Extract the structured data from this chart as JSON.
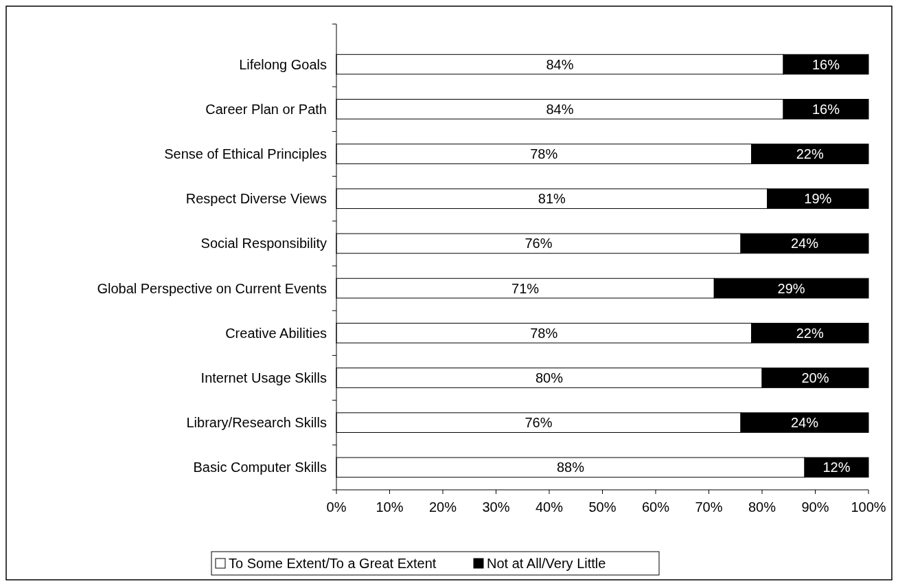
{
  "chart_data": {
    "type": "bar",
    "orientation": "horizontal",
    "stacked": true,
    "categories": [
      "Lifelong Goals",
      "Career Plan or Path",
      "Sense of Ethical Principles",
      "Respect Diverse Views",
      "Social Responsibility",
      "Global Perspective on Current Events",
      "Creative Abilities",
      "Internet Usage Skills",
      "Library/Research Skills",
      "Basic Computer Skills"
    ],
    "series": [
      {
        "name": "To Some Extent/To a Great Extent",
        "color": "#ffffff",
        "values": [
          84,
          84,
          78,
          81,
          76,
          71,
          78,
          80,
          76,
          88
        ],
        "value_labels": [
          "84%",
          "84%",
          "78%",
          "81%",
          "76%",
          "71%",
          "78%",
          "80%",
          "76%",
          "88%"
        ]
      },
      {
        "name": "Not at All/Very Little",
        "color": "#000000",
        "values": [
          16,
          16,
          22,
          19,
          24,
          29,
          22,
          20,
          24,
          12
        ],
        "value_labels": [
          "16%",
          "16%",
          "22%",
          "19%",
          "24%",
          "29%",
          "22%",
          "20%",
          "24%",
          "12%"
        ]
      }
    ],
    "xlim": [
      0,
      100
    ],
    "xticks": [
      {
        "value": 0,
        "label": "0%"
      },
      {
        "value": 10,
        "label": "10%"
      },
      {
        "value": 20,
        "label": "20%"
      },
      {
        "value": 30,
        "label": "30%"
      },
      {
        "value": 40,
        "label": "40%"
      },
      {
        "value": 50,
        "label": "50%"
      },
      {
        "value": 60,
        "label": "60%"
      },
      {
        "value": 70,
        "label": "70%"
      },
      {
        "value": 80,
        "label": "80%"
      },
      {
        "value": 90,
        "label": "90%"
      },
      {
        "value": 100,
        "label": "100%"
      }
    ],
    "grid": false,
    "legend": "bottom"
  }
}
